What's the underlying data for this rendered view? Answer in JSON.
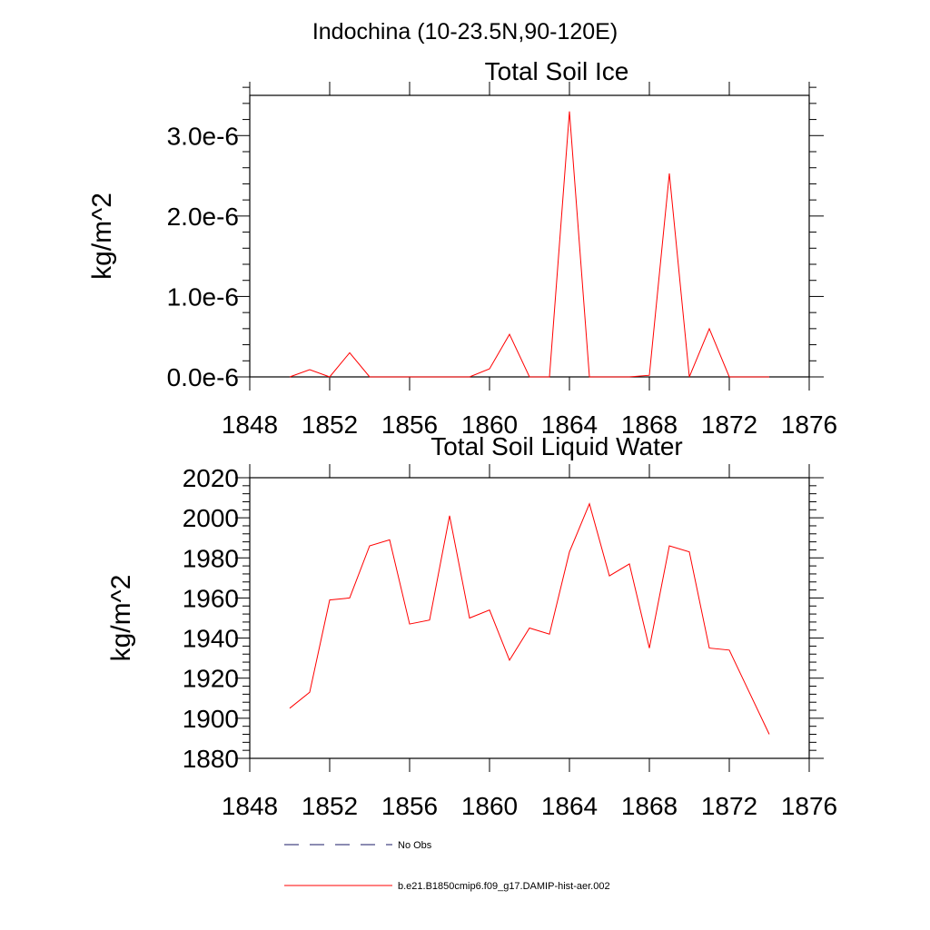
{
  "figure": {
    "header": "Indochina (10-23.5N,90-120E)"
  },
  "legend": {
    "entries": [
      {
        "label": "No Obs",
        "color": "#1a1a66",
        "dash": "dashed"
      },
      {
        "label": "b.e21.B1850cmip6.f09_g17.DAMIP-hist-aer.002",
        "color": "#ff0000",
        "dash": "solid"
      }
    ]
  },
  "chart_data": [
    {
      "type": "line",
      "title": "Total Soil Ice",
      "xlabel": "",
      "ylabel": "kg/m^2",
      "xlim": [
        1848,
        1876
      ],
      "ylim": [
        0,
        3.5e-06
      ],
      "grid": false,
      "x_ticks": [
        1848,
        1852,
        1856,
        1860,
        1864,
        1868,
        1872,
        1876
      ],
      "x_tick_labels": [
        "1848",
        "1852",
        "1856",
        "1860",
        "1864",
        "1868",
        "1872",
        "1876"
      ],
      "y_ticks": [
        0,
        1e-06,
        2e-06,
        3e-06
      ],
      "y_tick_labels": [
        "0.0e-6",
        "1.0e-6",
        "2.0e-6",
        "3.0e-6"
      ],
      "x": [
        1850,
        1851,
        1852,
        1853,
        1854,
        1855,
        1856,
        1857,
        1858,
        1859,
        1860,
        1861,
        1862,
        1863,
        1864,
        1865,
        1866,
        1867,
        1868,
        1869,
        1870,
        1871,
        1872,
        1873,
        1874
      ],
      "series": [
        {
          "name": "b.e21.B1850cmip6.f09_g17.DAMIP-hist-aer.002",
          "color": "#ff0000",
          "values": [
            0,
            9e-08,
            0,
            3e-07,
            0,
            0,
            0,
            0,
            0,
            0,
            1e-07,
            5.3e-07,
            0,
            0,
            3.3e-06,
            0,
            0,
            0,
            2e-08,
            2.53e-06,
            0,
            6e-07,
            0,
            0,
            0
          ]
        }
      ]
    },
    {
      "type": "line",
      "title": "Total Soil Liquid Water",
      "xlabel": "",
      "ylabel": "kg/m^2",
      "xlim": [
        1848,
        1876
      ],
      "ylim": [
        1880,
        2020
      ],
      "grid": false,
      "x_ticks": [
        1848,
        1852,
        1856,
        1860,
        1864,
        1868,
        1872,
        1876
      ],
      "x_tick_labels": [
        "1848",
        "1852",
        "1856",
        "1860",
        "1864",
        "1868",
        "1872",
        "1876"
      ],
      "y_ticks": [
        1880,
        1900,
        1920,
        1940,
        1960,
        1980,
        2000,
        2020
      ],
      "y_tick_labels": [
        "1880",
        "1900",
        "1920",
        "1940",
        "1960",
        "1980",
        "2000",
        "2020"
      ],
      "x": [
        1850,
        1851,
        1852,
        1853,
        1854,
        1855,
        1856,
        1857,
        1858,
        1859,
        1860,
        1861,
        1862,
        1863,
        1864,
        1865,
        1866,
        1867,
        1868,
        1869,
        1870,
        1871,
        1872,
        1873,
        1874
      ],
      "series": [
        {
          "name": "b.e21.B1850cmip6.f09_g17.DAMIP-hist-aer.002",
          "color": "#ff0000",
          "values": [
            1905,
            1913,
            1959,
            1960,
            1986,
            1989,
            1947,
            1949,
            2001,
            1950,
            1954,
            1929,
            1945,
            1942,
            1983,
            2007,
            1971,
            1977,
            1935,
            1986,
            1983,
            1935,
            1934,
            1913,
            1892
          ]
        }
      ]
    }
  ]
}
